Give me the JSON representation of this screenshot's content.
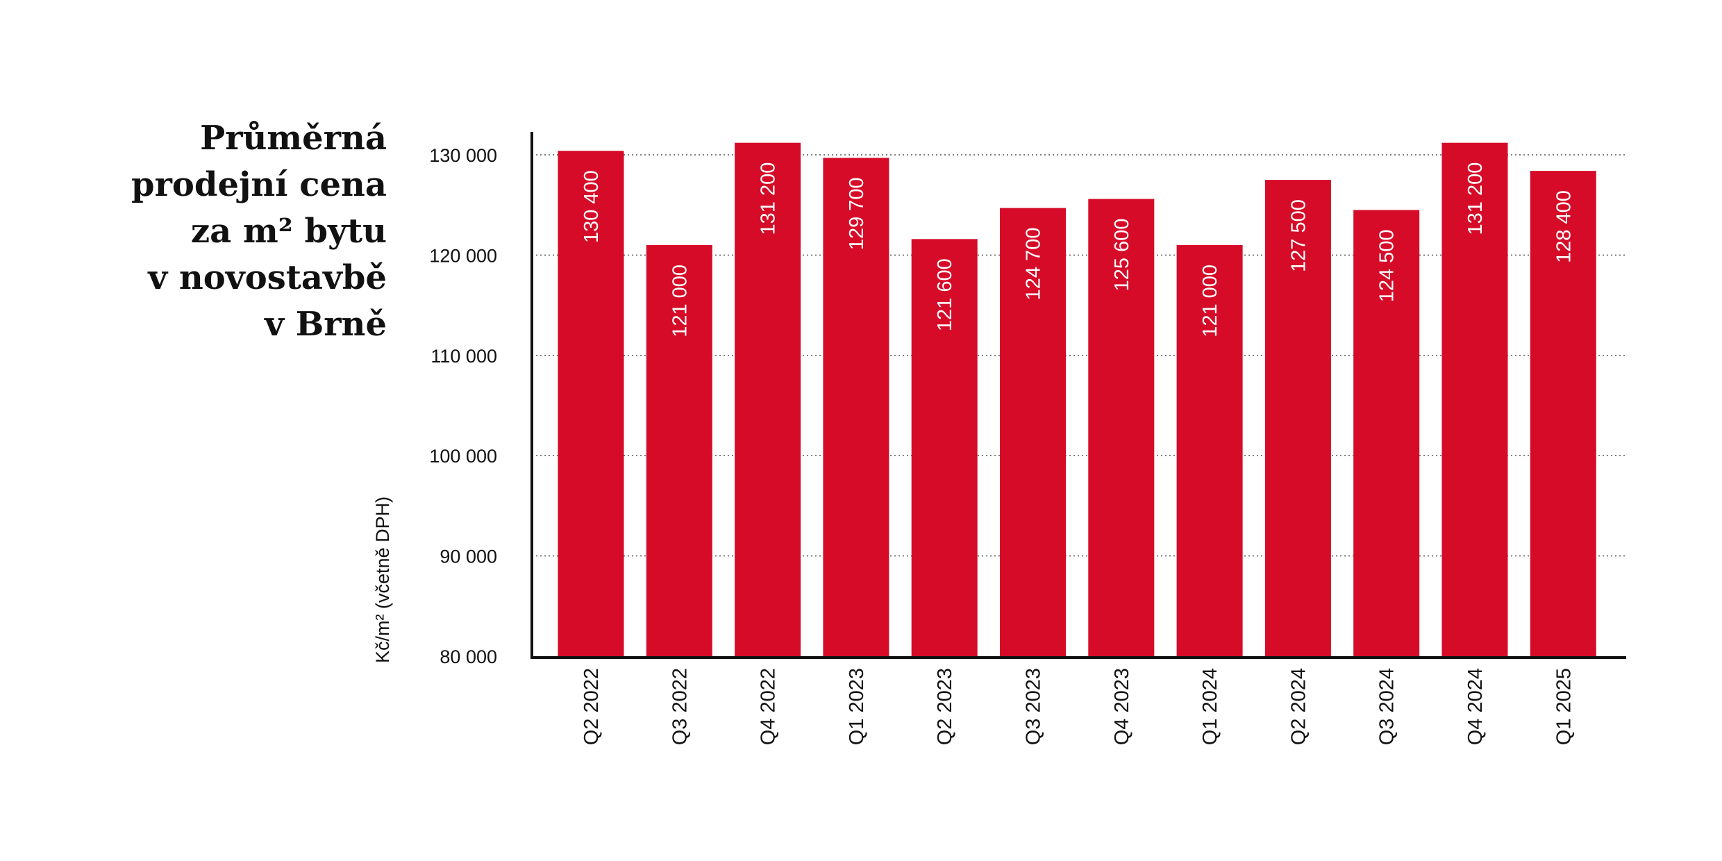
{
  "chart_data": {
    "type": "bar",
    "title_lines": [
      "Průměrná",
      "prodejní cena",
      "za m² bytu",
      "v novostavbě",
      "v Brně"
    ],
    "ylabel": "Kč/m² (včetně DPH)",
    "xlabel": "",
    "ylim": [
      80000,
      130000
    ],
    "yticks": [
      80000,
      90000,
      100000,
      110000,
      120000,
      130000
    ],
    "ytick_labels": [
      "80 000",
      "90 000",
      "100 000",
      "110 000",
      "120 000",
      "130 000"
    ],
    "categories": [
      "Q2 2022",
      "Q3 2022",
      "Q4 2022",
      "Q1 2023",
      "Q2 2023",
      "Q3 2023",
      "Q4 2023",
      "Q1 2024",
      "Q2 2024",
      "Q3 2024",
      "Q4 2024",
      "Q1 2025"
    ],
    "values": [
      130400,
      121000,
      131200,
      129700,
      121600,
      124700,
      125600,
      121000,
      127500,
      124500,
      131200,
      128400
    ],
    "value_labels": [
      "130 400",
      "121 000",
      "131 200",
      "129 700",
      "121 600",
      "124 700",
      "125 600",
      "121 000",
      "127 500",
      "124 500",
      "131 200",
      "128 400"
    ],
    "grid": true,
    "legend": "none",
    "colors": {
      "bar": "#d50b28",
      "text": "#111111",
      "value_label": "#ffffff"
    }
  }
}
